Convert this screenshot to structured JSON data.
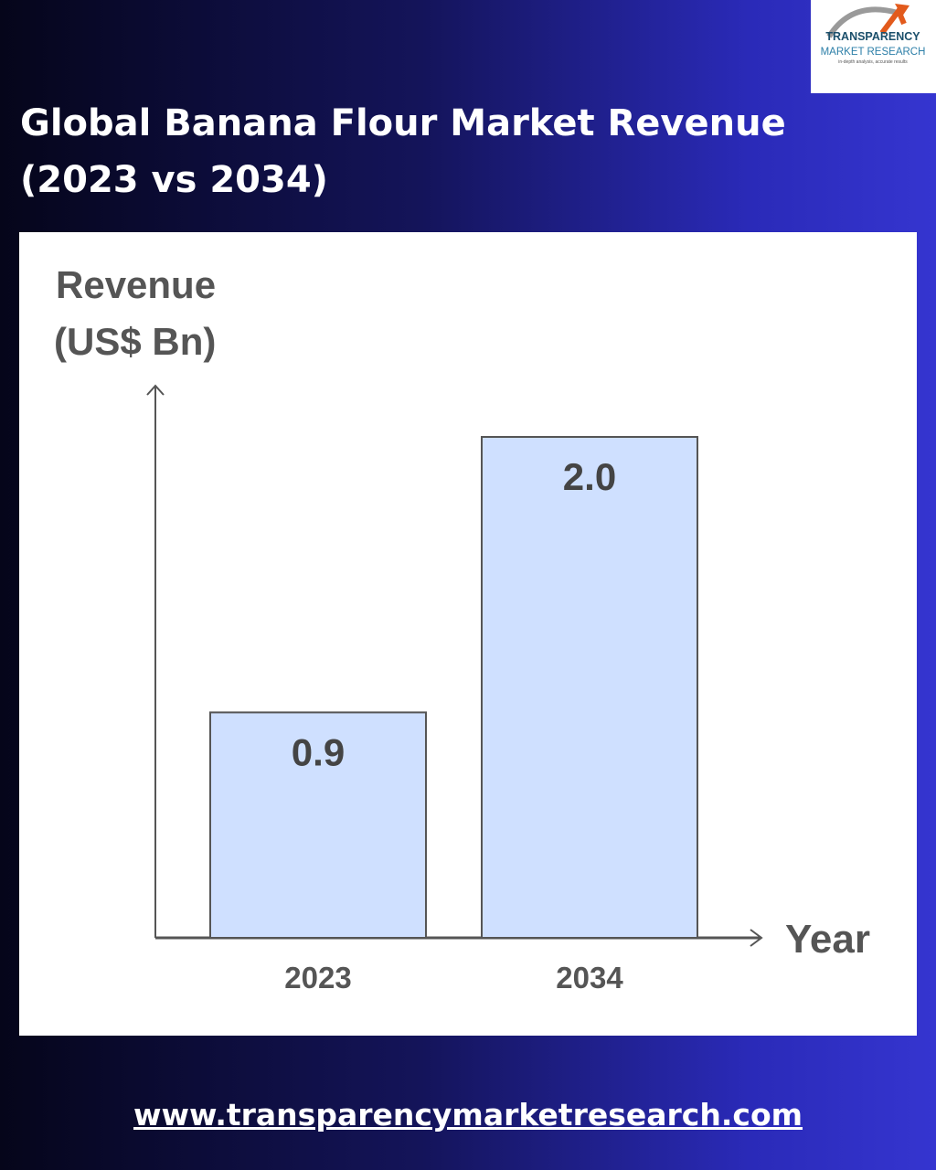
{
  "brand": {
    "name": "TRANSPARENCY",
    "sub": "MARKET RESEARCH",
    "tagline": "in-depth analysis, accurate results"
  },
  "title": {
    "line1": "Global Banana Flour Market Revenue",
    "line2": "(2023 vs 2034)"
  },
  "chart_data": {
    "type": "bar",
    "categories": [
      "2023",
      "2034"
    ],
    "values": [
      0.9,
      2.0
    ],
    "data_labels": [
      "0.9",
      "2.0"
    ],
    "ylabel_line1": "Revenue",
    "ylabel_line2": "(US$ Bn)",
    "xlabel": "Year",
    "ylim": [
      0,
      2.0
    ],
    "grid": false,
    "bar_color": "#cfe0ff",
    "bar_stroke": "#555555"
  },
  "footer": {
    "url": "www.transparencymarketresearch.com"
  }
}
